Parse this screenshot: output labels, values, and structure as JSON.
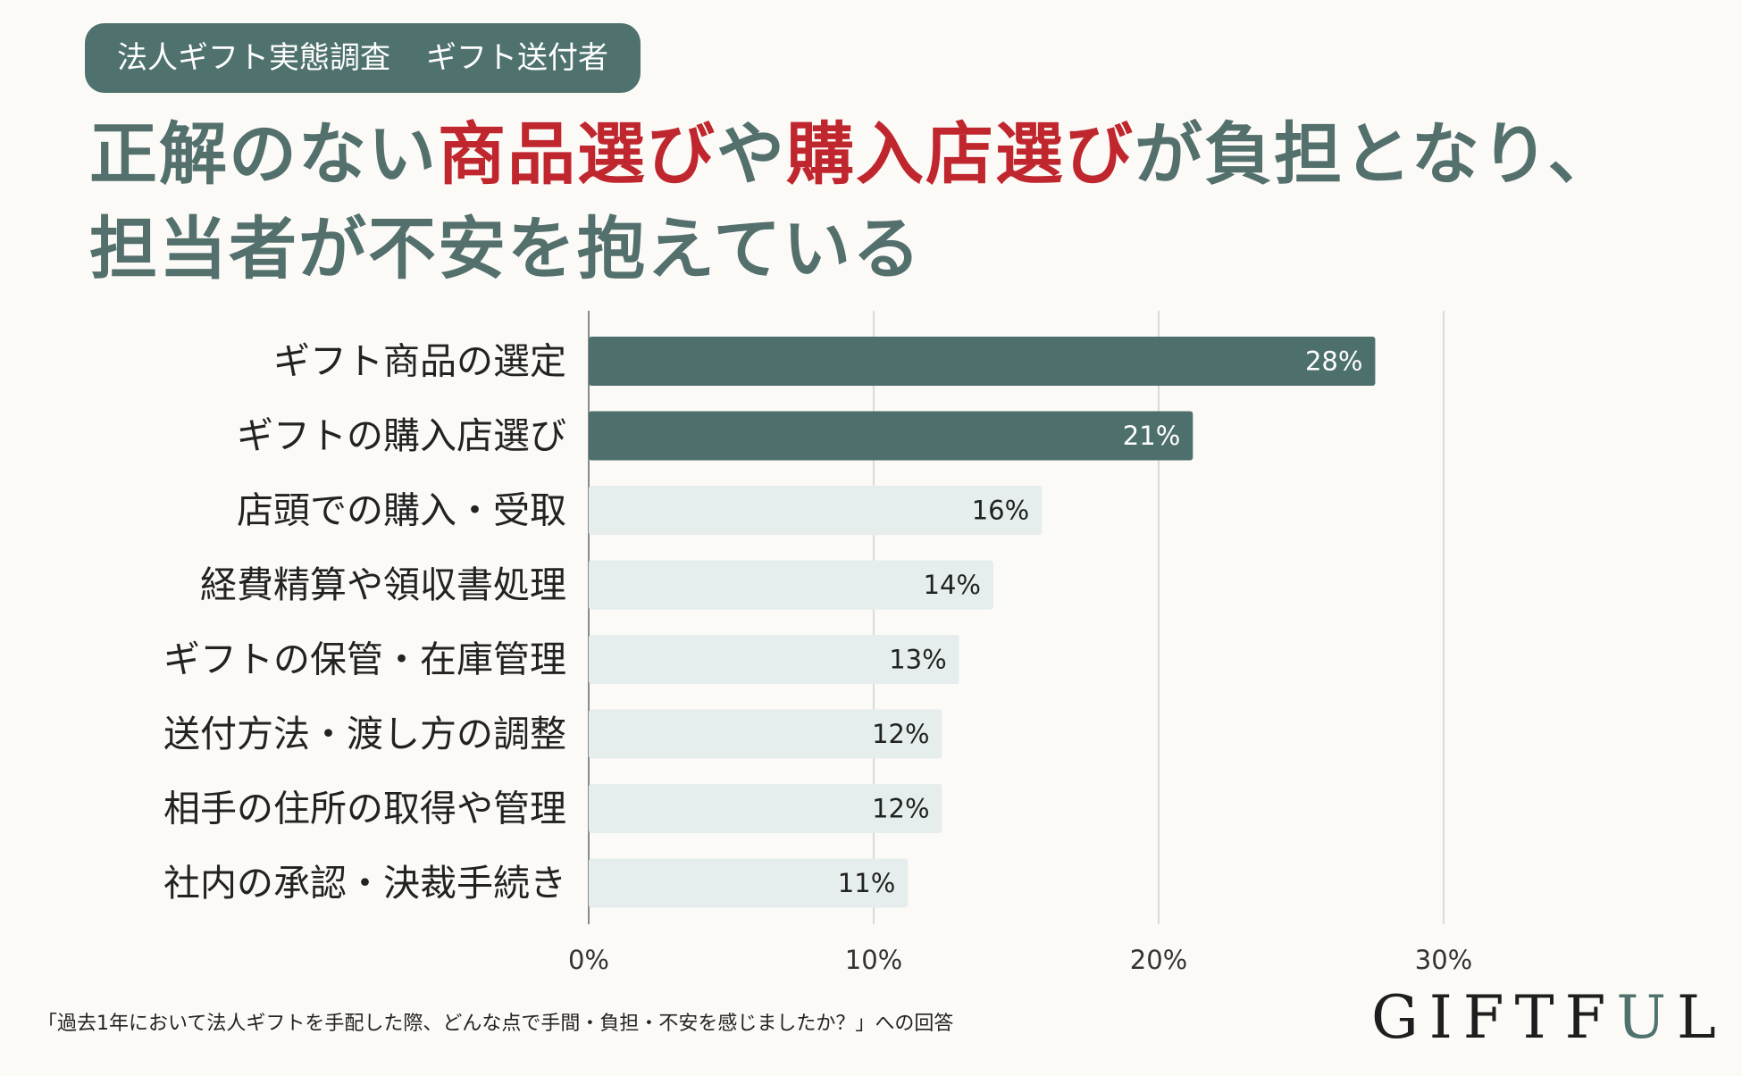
{
  "badge": {
    "part1": "法人ギフト実態調査",
    "part2": "ギフト送付者"
  },
  "headline": {
    "seg1": "正解のない",
    "seg2": "商品選び",
    "seg3": "や",
    "seg4": "購入店選び",
    "seg5": "が負担となり、",
    "seg6": "担当者が不安を抱えている"
  },
  "colors": {
    "highlight_bar": "#4e706d",
    "light_bar": "#e5eeec",
    "accent_red": "#c0262d",
    "headline": "#53706d",
    "badge_bg": "#4f726e"
  },
  "chart_data": {
    "type": "bar",
    "orientation": "horizontal",
    "categories": [
      "ギフト商品の選定",
      "ギフトの購入店選び",
      "店頭での購入・受取",
      "経費精算や領収書処理",
      "ギフトの保管・在庫管理",
      "送付方法・渡し方の調整",
      "相手の住所の取得や管理",
      "社内の承認・決裁手続き"
    ],
    "values": [
      27.6,
      21.2,
      15.9,
      14.2,
      13.0,
      12.4,
      12.4,
      11.2
    ],
    "value_labels": [
      "28%",
      "21%",
      "16%",
      "14%",
      "13%",
      "12%",
      "12%",
      "11%"
    ],
    "highlighted": [
      true,
      true,
      false,
      false,
      false,
      false,
      false,
      false
    ],
    "xlim": [
      0,
      30
    ],
    "xticks": [
      0,
      10,
      20,
      30
    ],
    "xtick_labels": [
      "0%",
      "10%",
      "20%",
      "30%"
    ],
    "grid": true
  },
  "footnote": "「過去1年において法人ギフトを手配した際、どんな点で手間・負担・不安を感じましたか？」への回答",
  "logo": {
    "text": "GIFTFUL"
  }
}
